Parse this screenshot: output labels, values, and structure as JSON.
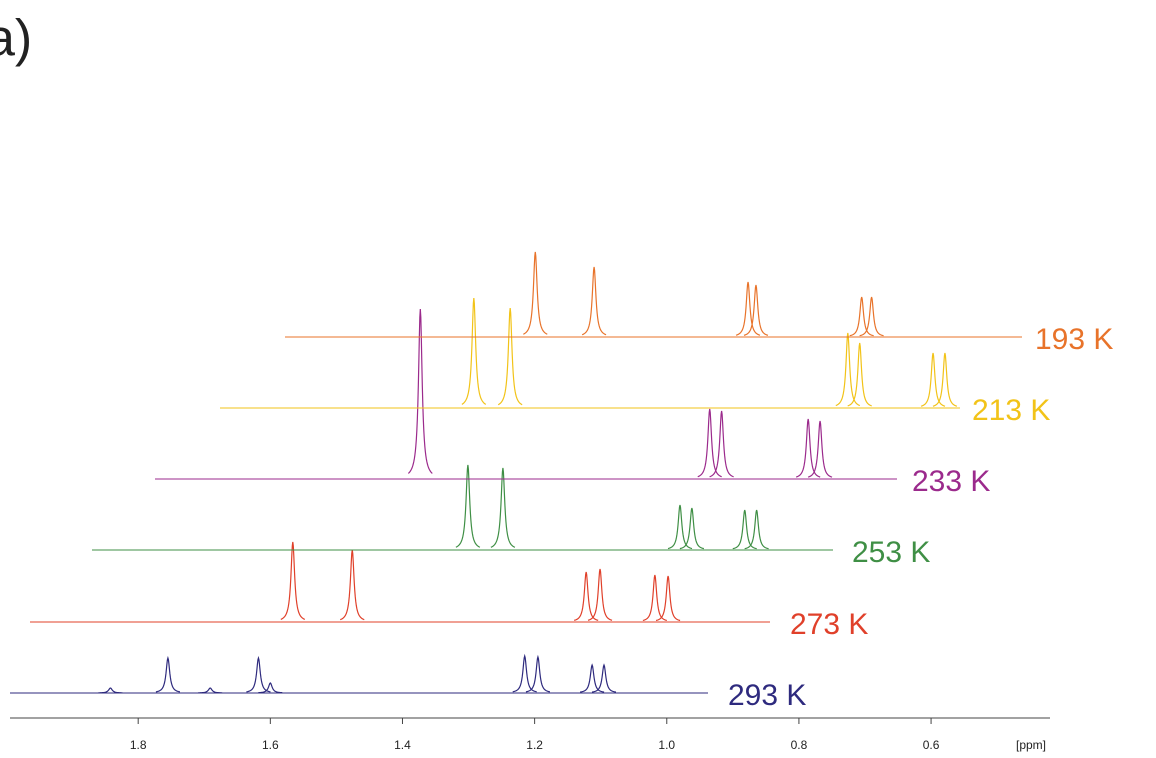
{
  "chart_data": {
    "type": "stacked-spectra",
    "title": "a)",
    "xlabel": "[ppm]",
    "xlim": [
      1.994,
      0.42
    ],
    "xticks": [
      1.8,
      1.6,
      1.4,
      1.2,
      {
        "value": 1,
        "label": "1.0"
      },
      0.8,
      0.6
    ],
    "series": [
      {
        "name": "293 K",
        "color": "#2e2a7e",
        "x": [
          1.842,
          1.755,
          1.691,
          1.618,
          1.6,
          1.215,
          1.195,
          1.113,
          1.095
        ],
        "values": [
          5,
          35,
          5,
          35,
          10,
          37,
          36,
          28,
          28
        ]
      },
      {
        "name": "273 K",
        "color": "#e0402a",
        "x": [
          1.566,
          1.476,
          1.122,
          1.101,
          1.018,
          0.998
        ],
        "values": [
          80,
          72,
          50,
          53,
          47,
          46
        ]
      },
      {
        "name": "253 K",
        "color": "#3f8f45",
        "x": [
          1.301,
          1.248,
          0.98,
          0.962,
          0.882,
          0.864
        ],
        "values": [
          85,
          82,
          45,
          42,
          40,
          40
        ]
      },
      {
        "name": "233 K",
        "color": "#9b2a8c",
        "x": [
          1.373,
          0.935,
          0.917,
          0.786,
          0.768
        ],
        "values": [
          170,
          70,
          68,
          60,
          58
        ]
      },
      {
        "name": "213 K",
        "color": "#f2c318",
        "x": [
          1.292,
          1.237,
          0.726,
          0.708,
          0.597,
          0.579
        ],
        "values": [
          110,
          100,
          75,
          65,
          55,
          55
        ]
      },
      {
        "name": "193 K",
        "color": "#e8732a",
        "x": [
          1.199,
          1.11,
          0.877,
          0.865,
          0.705,
          0.69
        ],
        "values": [
          85,
          70,
          55,
          52,
          40,
          40
        ]
      }
    ]
  }
}
